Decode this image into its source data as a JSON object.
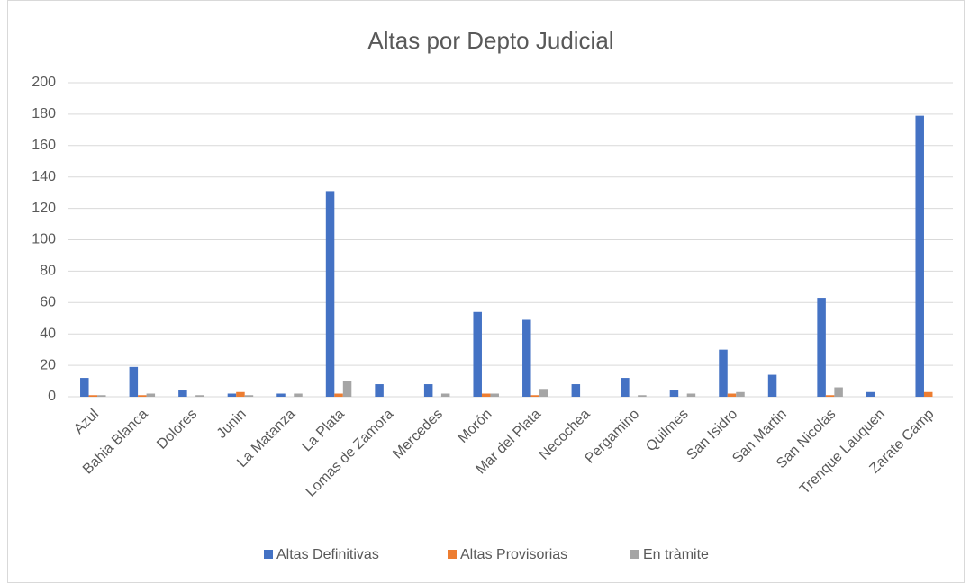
{
  "chart_data": {
    "type": "bar",
    "title": "Altas por Depto Judicial",
    "categories": [
      "Azul",
      "Bahia Blanca",
      "Dolores",
      "Junin",
      "La Matanza",
      "La Plata",
      "Lomas de Zamora",
      "Mercedes",
      "Morón",
      "Mar del Plata",
      "Necochea",
      "Pergamino",
      "Quilmes",
      "San Isidro",
      "San Martin",
      "San Nicolas",
      "Trenque Lauquen",
      "Zarate Camp"
    ],
    "series": [
      {
        "name": "Altas Definitivas",
        "color": "#4472c4",
        "values": [
          12,
          19,
          4,
          2,
          2,
          131,
          8,
          8,
          54,
          49,
          8,
          12,
          4,
          30,
          14,
          63,
          3,
          179
        ]
      },
      {
        "name": "Altas Provisorias",
        "color": "#ed7d31",
        "values": [
          1,
          1,
          0,
          3,
          0,
          2,
          0,
          0,
          2,
          1,
          0,
          0,
          0,
          2,
          0,
          1,
          0,
          3
        ]
      },
      {
        "name": "En tràmite",
        "color": "#a5a5a5",
        "values": [
          1,
          2,
          1,
          1,
          2,
          10,
          0,
          2,
          2,
          5,
          0,
          1,
          2,
          3,
          0,
          6,
          0,
          0
        ]
      }
    ],
    "ylim": [
      0,
      200
    ],
    "yticks": [
      0,
      20,
      40,
      60,
      80,
      100,
      120,
      140,
      160,
      180,
      200
    ],
    "grid": true,
    "legend": "bottom"
  }
}
